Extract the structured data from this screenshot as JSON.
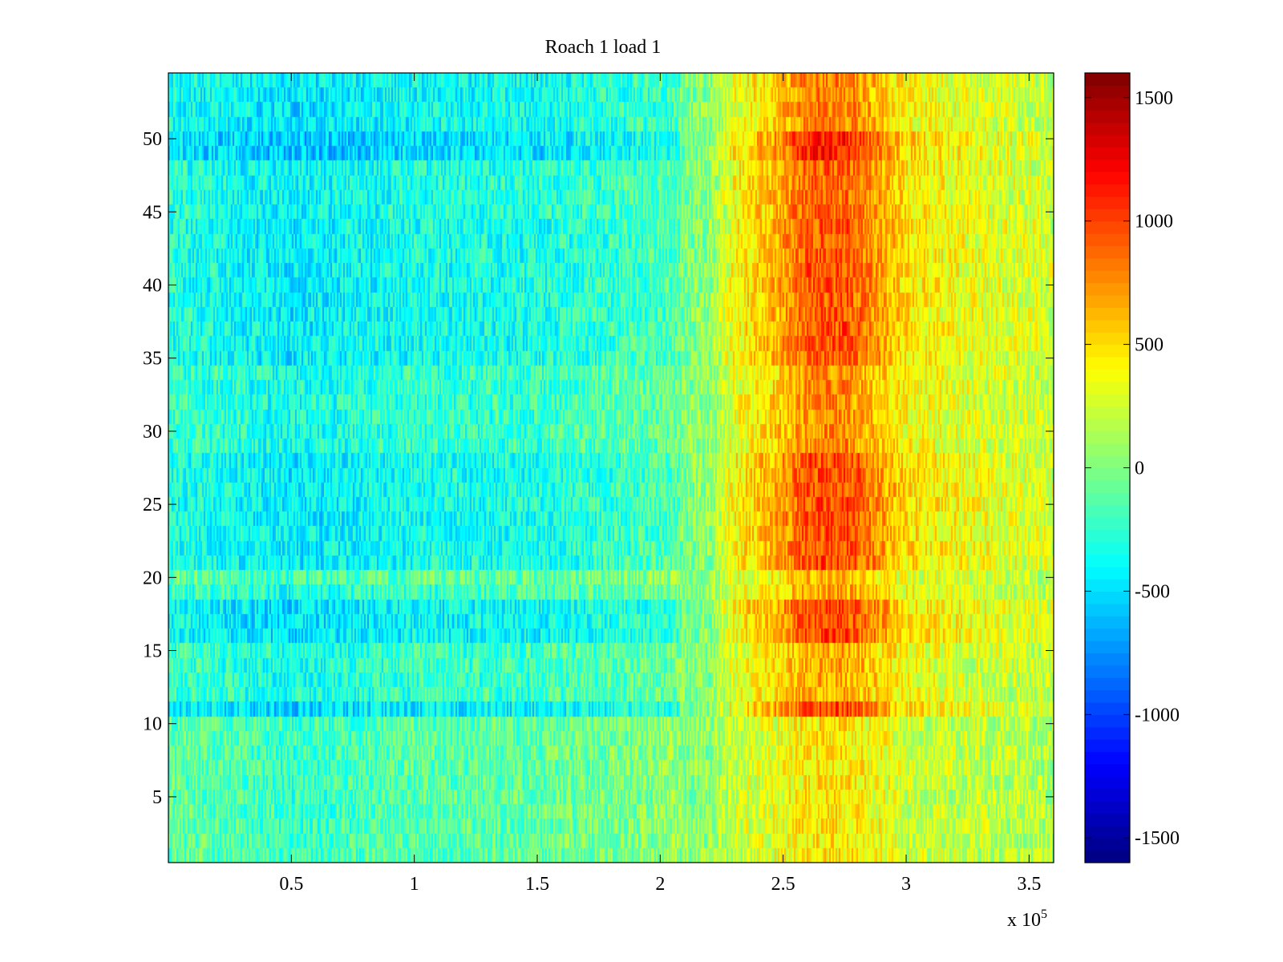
{
  "chart_data": {
    "type": "heatmap",
    "title": "Roach 1 load 1",
    "xlabel": "",
    "ylabel": "",
    "x_exponent_label": "x 10",
    "x_exponent_power": "5",
    "xlim": [
      0,
      3.6
    ],
    "ylim": [
      0.5,
      54.5
    ],
    "xticks": [
      0.5,
      1,
      1.5,
      2,
      2.5,
      3,
      3.5
    ],
    "xtick_labels": [
      "0.5",
      "1",
      "1.5",
      "2",
      "2.5",
      "3",
      "3.5"
    ],
    "yticks": [
      5,
      10,
      15,
      20,
      25,
      30,
      35,
      40,
      45,
      50
    ],
    "ytick_labels": [
      "5",
      "10",
      "15",
      "20",
      "25",
      "30",
      "35",
      "40",
      "45",
      "50"
    ],
    "rows": 54,
    "colormap": "jet",
    "clim": [
      -1600,
      1600
    ],
    "colorbar_ticks": [
      -1500,
      -1000,
      -500,
      0,
      500,
      1000,
      1500
    ],
    "colorbar_tick_labels": [
      "-1500",
      "-1000",
      "-500",
      "0",
      "500",
      "1000",
      "1500"
    ],
    "x_profile": [
      {
        "x": 0.0,
        "value": -160
      },
      {
        "x": 0.3,
        "value": -240
      },
      {
        "x": 0.5,
        "value": -300
      },
      {
        "x": 0.8,
        "value": -240
      },
      {
        "x": 1.0,
        "value": -200
      },
      {
        "x": 1.5,
        "value": -180
      },
      {
        "x": 2.0,
        "value": -40
      },
      {
        "x": 2.2,
        "value": 60
      },
      {
        "x": 2.3,
        "value": 350
      },
      {
        "x": 2.45,
        "value": 520
      },
      {
        "x": 2.6,
        "value": 800
      },
      {
        "x": 2.75,
        "value": 820
      },
      {
        "x": 2.9,
        "value": 600
      },
      {
        "x": 3.0,
        "value": 420
      },
      {
        "x": 3.2,
        "value": 340
      },
      {
        "x": 3.4,
        "value": 280
      },
      {
        "x": 3.6,
        "value": 240
      }
    ],
    "row_bands": [
      {
        "from_row": 1,
        "to_row": 10,
        "low_x_offset": 120,
        "high_x_scale": 0.55
      },
      {
        "from_row": 11,
        "to_row": 11,
        "low_x_offset": -400,
        "high_x_scale": 1.3
      },
      {
        "from_row": 12,
        "to_row": 15,
        "low_x_offset": -60,
        "high_x_scale": 0.85
      },
      {
        "from_row": 16,
        "to_row": 18,
        "low_x_offset": -350,
        "high_x_scale": 1.3
      },
      {
        "from_row": 19,
        "to_row": 19,
        "low_x_offset": -40,
        "high_x_scale": 0.85
      },
      {
        "from_row": 20,
        "to_row": 20,
        "low_x_offset": 150,
        "high_x_scale": 0.7
      },
      {
        "from_row": 21,
        "to_row": 28,
        "low_x_offset": -240,
        "high_x_scale": 1.25
      },
      {
        "from_row": 29,
        "to_row": 34,
        "low_x_offset": -80,
        "high_x_scale": 0.95
      },
      {
        "from_row": 35,
        "to_row": 44,
        "low_x_offset": -240,
        "high_x_scale": 1.2
      },
      {
        "from_row": 45,
        "to_row": 48,
        "low_x_offset": -180,
        "high_x_scale": 1.15
      },
      {
        "from_row": 49,
        "to_row": 50,
        "low_x_offset": -500,
        "high_x_scale": 1.45
      },
      {
        "from_row": 51,
        "to_row": 54,
        "low_x_offset": -300,
        "high_x_scale": 1.05
      }
    ],
    "noise_amplitude": 260
  }
}
